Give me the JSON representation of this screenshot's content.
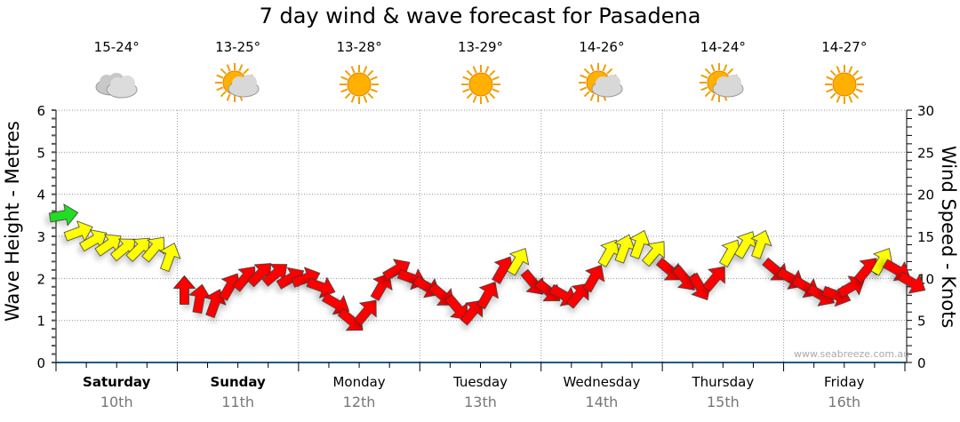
{
  "chart_data": {
    "type": "scatter",
    "title": "7 day wind & wave forecast for Pasadena",
    "ylabel_left": "Wave Height - Metres",
    "ylabel_right": "Wind Speed - Knots",
    "ylim_left": [
      0,
      6
    ],
    "ylim_right": [
      0,
      30
    ],
    "yticks_left": [
      "0",
      "1",
      "2",
      "3",
      "4",
      "5",
      "6"
    ],
    "yticks_right": [
      "0",
      "5",
      "10",
      "15",
      "20",
      "25",
      "30"
    ],
    "grid": true,
    "days": [
      {
        "name": "Saturday",
        "date": "10th",
        "temp": "15-24°",
        "icon": "cloudy",
        "bold": true
      },
      {
        "name": "Sunday",
        "date": "11th",
        "temp": "13-25°",
        "icon": "partly-cloudy",
        "bold": true
      },
      {
        "name": "Monday",
        "date": "12th",
        "temp": "13-28°",
        "icon": "sunny",
        "bold": false
      },
      {
        "name": "Tuesday",
        "date": "13th",
        "temp": "13-29°",
        "icon": "sunny",
        "bold": false
      },
      {
        "name": "Wednesday",
        "date": "14th",
        "temp": "14-26°",
        "icon": "partly-cloudy",
        "bold": false
      },
      {
        "name": "Thursday",
        "date": "15th",
        "temp": "14-24°",
        "icon": "partly-cloudy",
        "bold": false
      },
      {
        "name": "Friday",
        "date": "16th",
        "temp": "14-27°",
        "icon": "sunny",
        "bold": false
      }
    ],
    "wind_interval_hours": 3,
    "wind_knots": [
      17.5,
      15.5,
      14.5,
      14,
      13.5,
      13.5,
      13.5,
      12.5,
      8.5,
      7.5,
      7,
      9,
      10,
      10.5,
      10.5,
      10,
      10,
      9,
      7,
      5,
      6,
      9,
      11,
      10,
      9,
      8,
      6.5,
      6,
      8,
      11,
      12,
      9.5,
      8.5,
      8,
      8,
      10,
      13,
      13.5,
      14,
      13,
      11,
      10,
      9,
      10,
      13,
      14,
      14,
      11,
      10,
      9,
      8,
      8,
      9,
      11,
      12,
      11,
      9.5
    ],
    "wind_direction_deg": [
      80,
      70,
      60,
      55,
      50,
      45,
      40,
      20,
      0,
      10,
      20,
      30,
      40,
      45,
      50,
      60,
      70,
      110,
      120,
      130,
      40,
      30,
      60,
      110,
      120,
      130,
      140,
      40,
      30,
      30,
      30,
      140,
      130,
      120,
      40,
      30,
      30,
      20,
      20,
      40,
      130,
      140,
      150,
      40,
      30,
      30,
      20,
      130,
      120,
      120,
      120,
      110,
      60,
      40,
      30,
      120,
      120
    ],
    "wind_colors": {
      "green": "#22dd22",
      "yellow": "#ffff00",
      "red": "#ff0000"
    },
    "wind_color_index": [
      "green",
      "yellow",
      "yellow",
      "yellow",
      "yellow",
      "yellow",
      "yellow",
      "yellow",
      "red",
      "red",
      "red",
      "red",
      "red",
      "red",
      "red",
      "red",
      "red",
      "red",
      "red",
      "red",
      "red",
      "red",
      "red",
      "red",
      "red",
      "red",
      "red",
      "red",
      "red",
      "red",
      "yellow",
      "red",
      "red",
      "red",
      "red",
      "red",
      "yellow",
      "yellow",
      "yellow",
      "yellow",
      "red",
      "red",
      "red",
      "red",
      "yellow",
      "yellow",
      "yellow",
      "red",
      "red",
      "red",
      "red",
      "red",
      "red",
      "red",
      "yellow",
      "red",
      "red"
    ]
  },
  "credit": "www.seabreeze.com.au"
}
